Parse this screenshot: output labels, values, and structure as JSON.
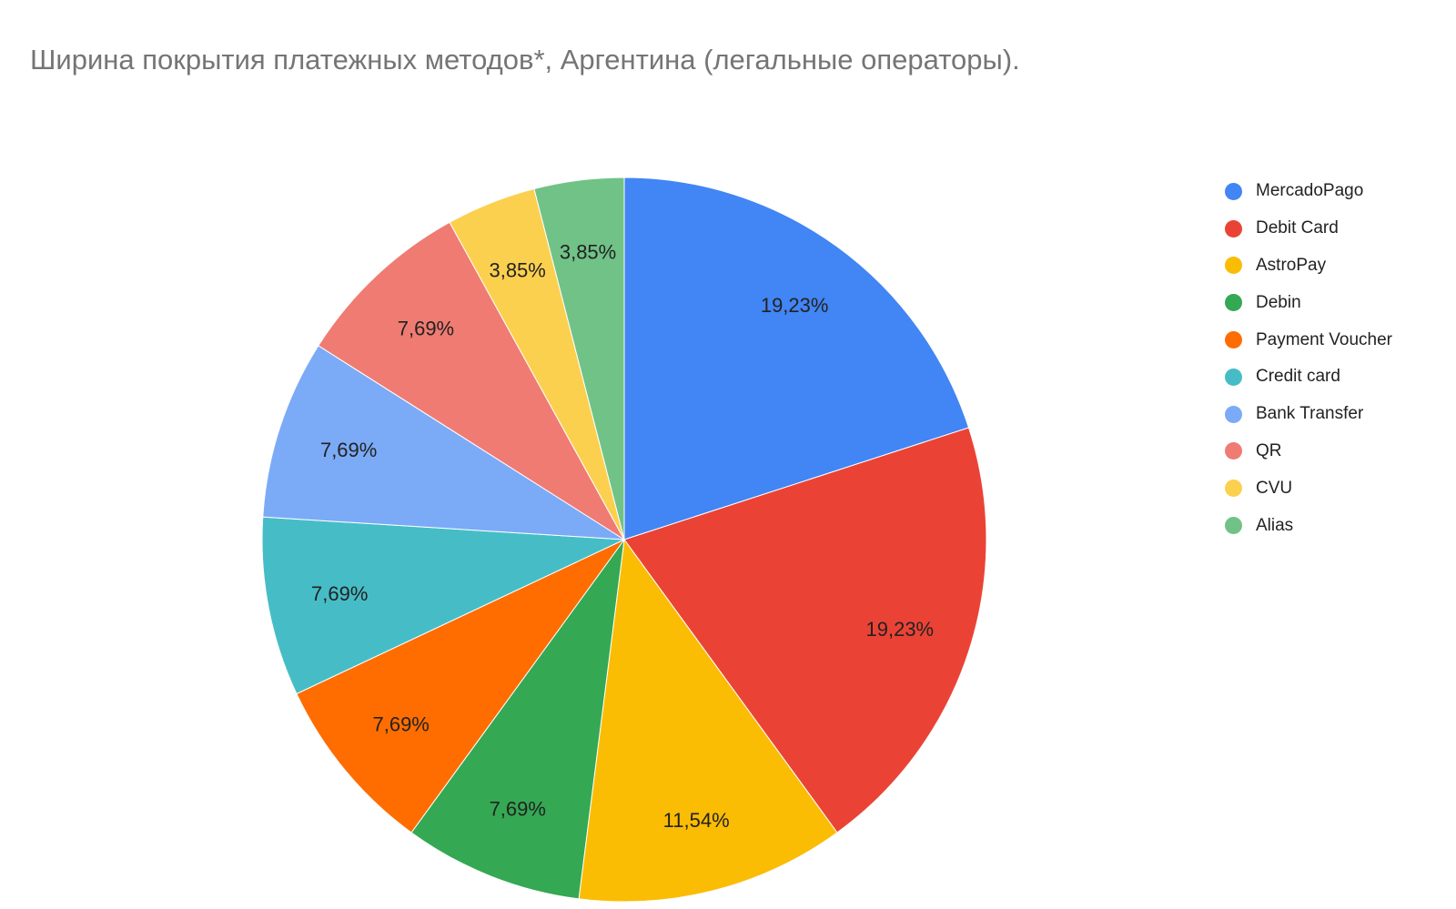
{
  "chart_data": {
    "type": "pie",
    "title": "Ширина покрытия платежных методов*, Аргентина (легальные операторы).",
    "legend_position": "right",
    "slices": [
      {
        "name": "MercadoPago",
        "value": 19.23,
        "label": "19,23%",
        "color": "#4285F4"
      },
      {
        "name": "Debit Card",
        "value": 19.23,
        "label": "19,23%",
        "color": "#EA4335"
      },
      {
        "name": "AstroPay",
        "value": 11.54,
        "label": "11,54%",
        "color": "#FBBC04"
      },
      {
        "name": "Debin",
        "value": 7.69,
        "label": "7,69%",
        "color": "#34A853"
      },
      {
        "name": "Payment Voucher",
        "value": 7.69,
        "label": "7,69%",
        "color": "#FF6D01"
      },
      {
        "name": "Credit card",
        "value": 7.69,
        "label": "7,69%",
        "color": "#46BDC6"
      },
      {
        "name": "Bank Transfer",
        "value": 7.69,
        "label": "7,69%",
        "color": "#7BAAF7"
      },
      {
        "name": "QR",
        "value": 7.69,
        "label": "7,69%",
        "color": "#F07B72"
      },
      {
        "name": "CVU",
        "value": 3.85,
        "label": "3,85%",
        "color": "#FCD04F"
      },
      {
        "name": "Alias",
        "value": 3.85,
        "label": "3,85%",
        "color": "#71C287"
      }
    ]
  }
}
